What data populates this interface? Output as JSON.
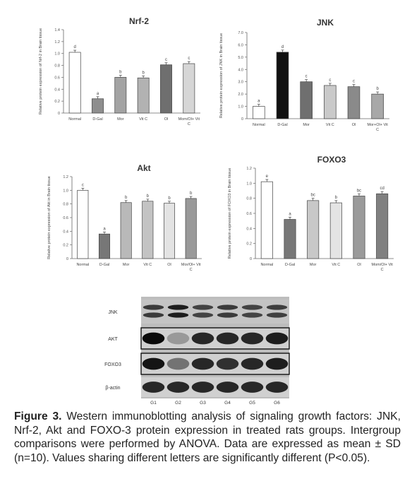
{
  "chart_data": [
    {
      "type": "bar",
      "title": "Nrf-2",
      "ylabel": "Relative protein expression of Nrf-2 in Brain tissue",
      "ylim": [
        0,
        1.4
      ],
      "yticks": [
        "0",
        "0.2",
        "0.4",
        "0.6",
        "0.8",
        "1.0",
        "1.2",
        "1.4"
      ],
      "categories": [
        "Normal",
        "D-Gal",
        "Mor",
        "Vit C",
        "Ol",
        "Mom/Ol+ Vit C"
      ],
      "values": [
        1.02,
        0.24,
        0.6,
        0.59,
        0.81,
        0.83
      ],
      "labels": [
        "d",
        "a",
        "b",
        "b",
        "c",
        "c"
      ],
      "colors": [
        "#ffffff",
        "#8e8e8e",
        "#a3a3a3",
        "#b2b2b2",
        "#6f6f6f",
        "#d6d6d6"
      ]
    },
    {
      "type": "bar",
      "title": "JNK",
      "ylabel": "Relative protein expression of JNK in Brain tissue",
      "ylim": [
        0,
        7
      ],
      "yticks": [
        "0",
        "1.0",
        "2.0",
        "3.0",
        "4.0",
        "5.0",
        "6.0",
        "7.0"
      ],
      "categories": [
        "Normal",
        "D-Gal",
        "Mor",
        "Vit C",
        "Ol",
        "Mor+Ol+ Vit C"
      ],
      "values": [
        1.0,
        5.4,
        3.0,
        2.7,
        2.6,
        2.0
      ],
      "labels": [
        "a",
        "d",
        "c",
        "c",
        "c",
        "b"
      ],
      "colors": [
        "#ffffff",
        "#111111",
        "#6f6f6f",
        "#c9c9c9",
        "#8a8a8a",
        "#a8a8a8"
      ]
    },
    {
      "type": "bar",
      "title": "Akt",
      "ylabel": "Relative protein expression of Akt in Brain tissue",
      "ylim": [
        0,
        1.2
      ],
      "yticks": [
        "0",
        "0.2",
        "0.4",
        "0.6",
        "0.8",
        "1.0",
        "1.2"
      ],
      "categories": [
        "Normal",
        "D-Gal",
        "Mor",
        "Vit C",
        "Ol",
        "Mor/Ol+ Vit C"
      ],
      "values": [
        1.0,
        0.36,
        0.82,
        0.84,
        0.81,
        0.88
      ],
      "labels": [
        "c",
        "a",
        "b",
        "b",
        "b",
        "b"
      ],
      "colors": [
        "#ffffff",
        "#777777",
        "#b9b9b9",
        "#c3c3c3",
        "#e3e3e3",
        "#999999"
      ]
    },
    {
      "type": "bar",
      "title": "FOXO3",
      "ylabel": "Relative protein expression of FOXO3 in Brain tissue",
      "ylim": [
        0,
        1.2
      ],
      "yticks": [
        "0",
        "0.2",
        "0.4",
        "0.6",
        "0.8",
        "1.0",
        "1.2"
      ],
      "categories": [
        "Normal",
        "D-Gal",
        "Mor",
        "Vit C",
        "Ol",
        "Mom/Ol+ Vit C"
      ],
      "values": [
        1.02,
        0.52,
        0.77,
        0.74,
        0.83,
        0.86
      ],
      "labels": [
        "e",
        "a",
        "bc",
        "b",
        "bc",
        "cd"
      ],
      "colors": [
        "#ffffff",
        "#777777",
        "#c8c8c8",
        "#e4e4e4",
        "#9a9a9a",
        "#808080"
      ]
    }
  ],
  "blot": {
    "rows": [
      "JNK",
      "AKT",
      "FOXO3",
      "β-actin"
    ],
    "lanes": [
      "G1",
      "G2",
      "G3",
      "G4",
      "G5",
      "G6"
    ],
    "row_intensity": [
      [
        0.75,
        0.9,
        0.7,
        0.75,
        0.7,
        0.72
      ],
      [
        1.0,
        0.25,
        0.85,
        0.85,
        0.85,
        0.9
      ],
      [
        0.95,
        0.45,
        0.85,
        0.8,
        0.85,
        0.9
      ],
      [
        0.85,
        0.85,
        0.85,
        0.85,
        0.85,
        0.85
      ]
    ]
  },
  "caption": {
    "label": "Figure 3.",
    "text": " Western immunoblotting analysis of signaling growth factors: JNK, Nrf-2, Akt and FOXO-3 protein expression in treated rats groups. Intergroup comparisons were performed by ANOVA. Data are expressed as mean ± SD (n=10). Values sharing different letters are significantly different (P<0.05)."
  }
}
